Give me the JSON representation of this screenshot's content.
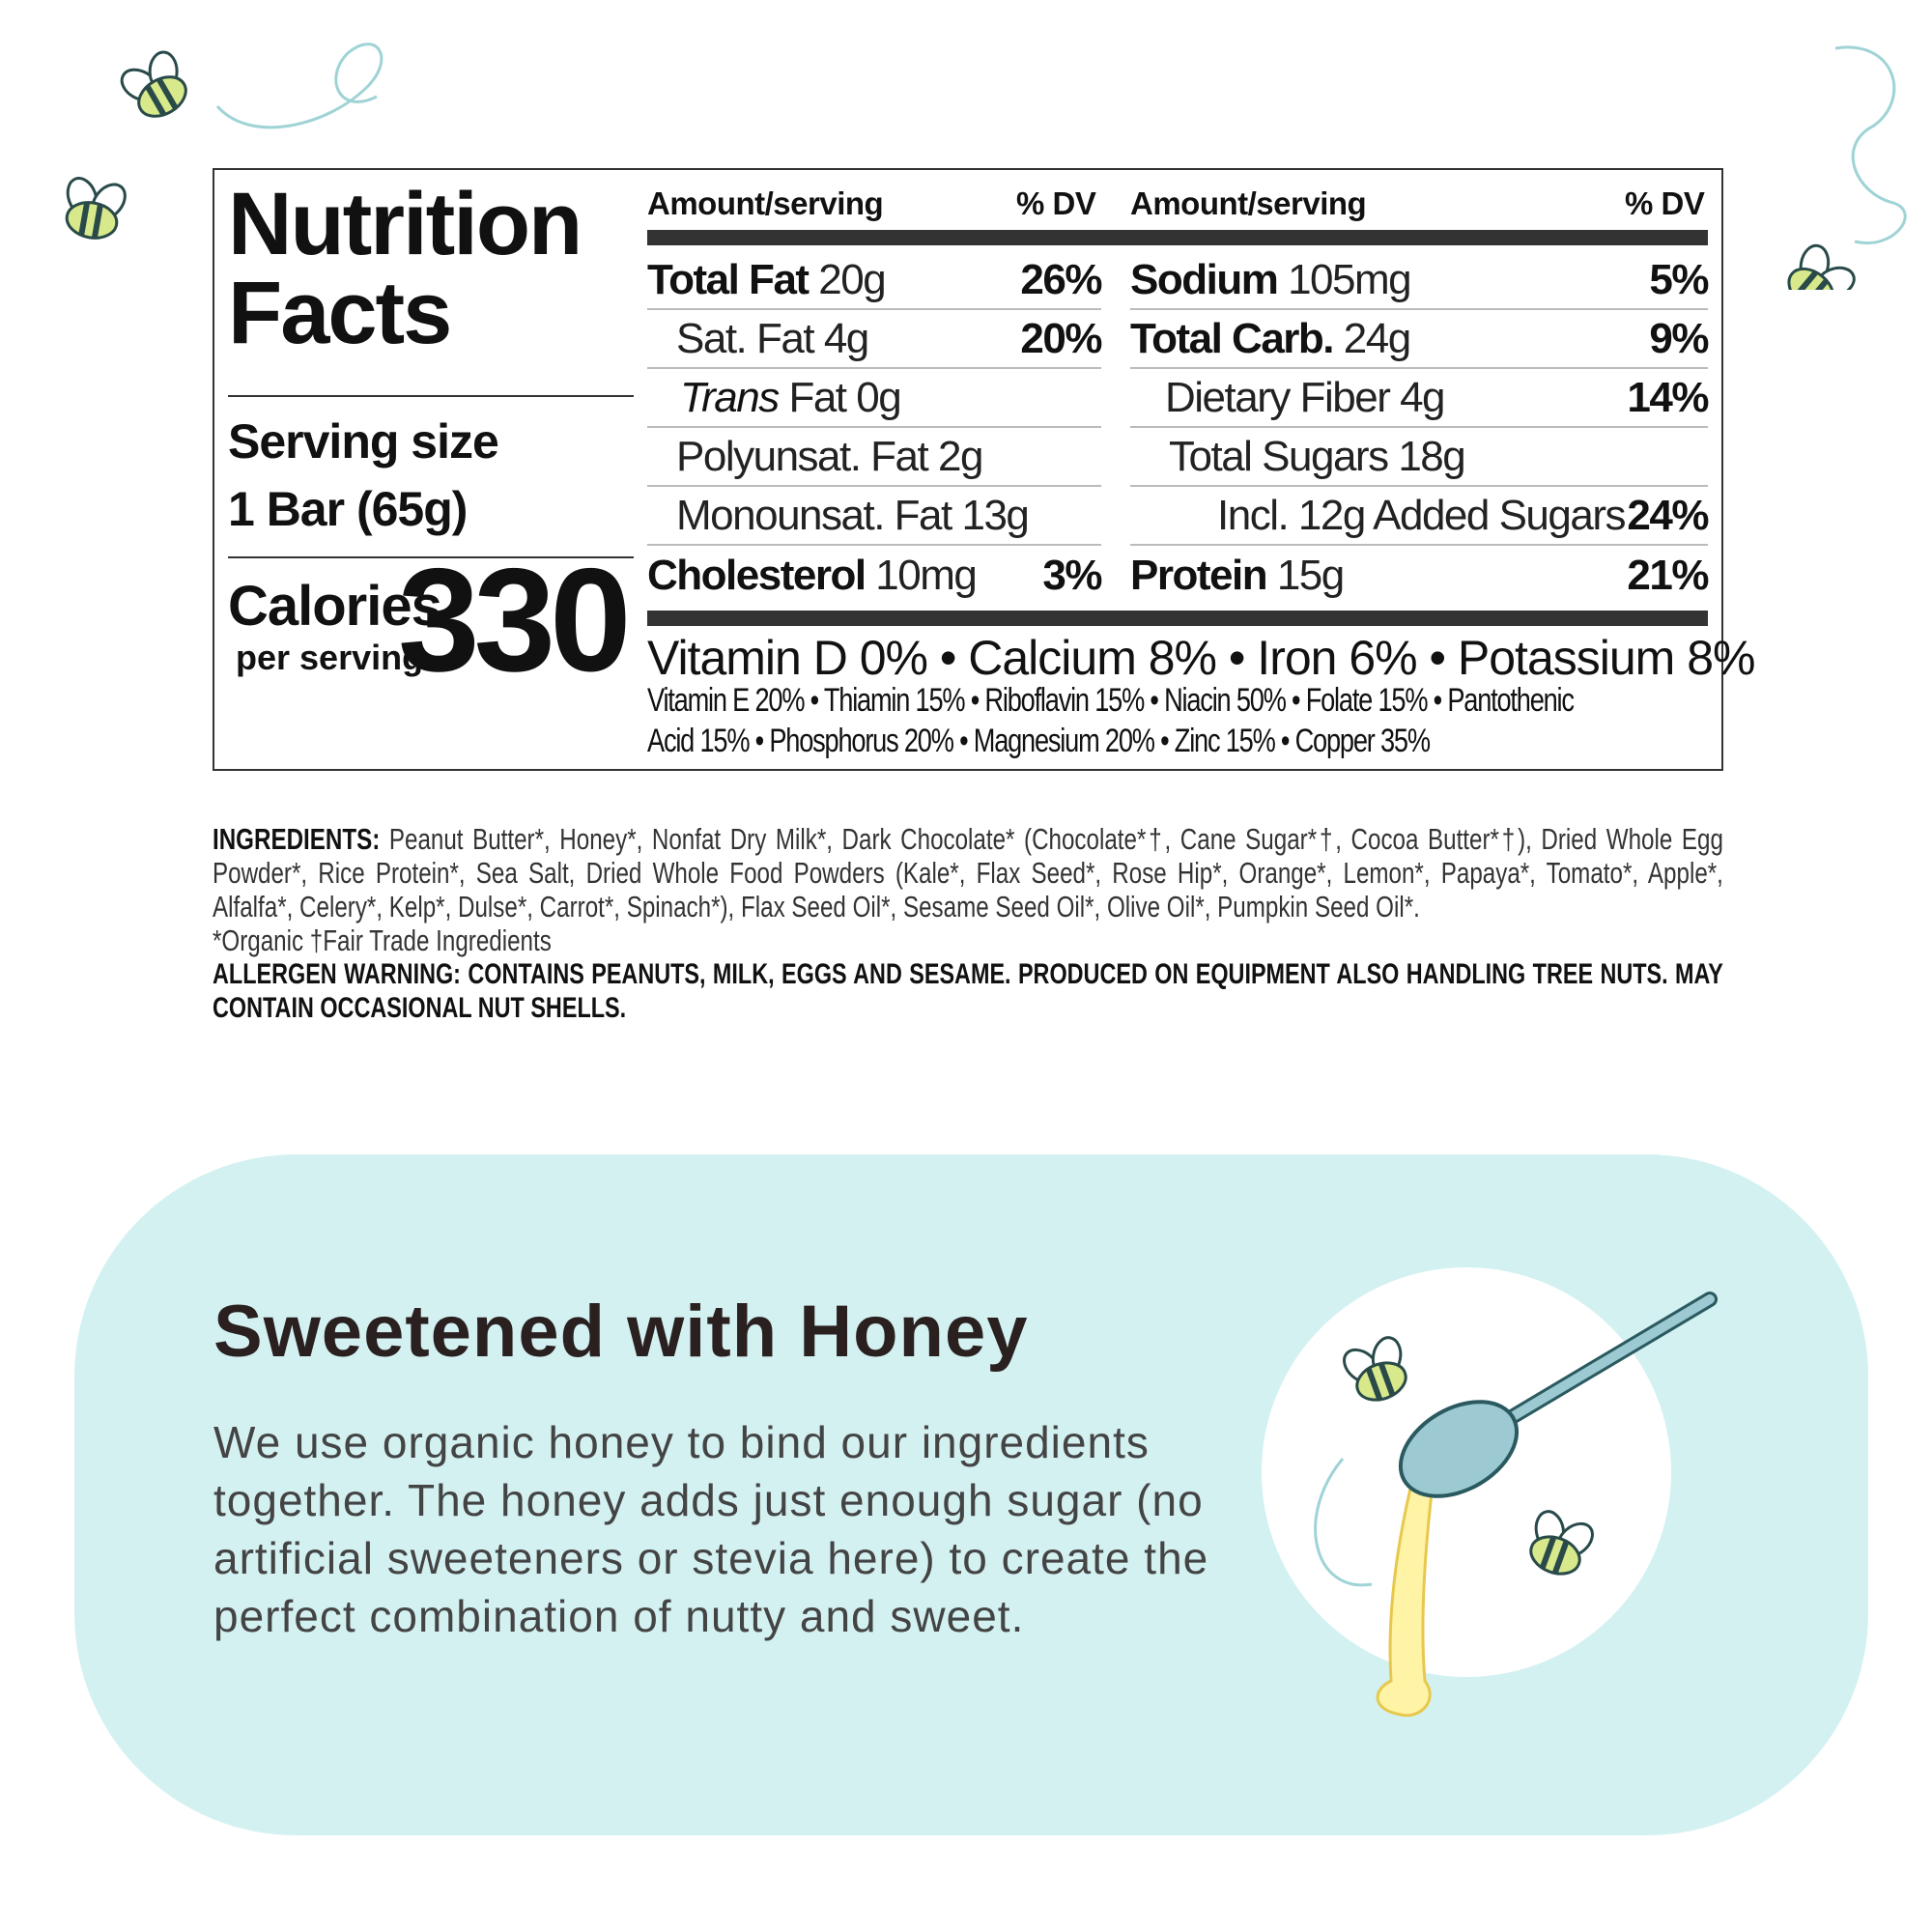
{
  "label": {
    "title_line1": "Nutrition",
    "title_line2": "Facts",
    "serving_size_label": "Serving size",
    "serving_size_value": "1 Bar (65g)",
    "calories_label": "Calories",
    "per_serving": "per serving",
    "calories": "330",
    "header_amount": "Amount/serving",
    "header_dv": "% DV",
    "left_rows": [
      {
        "name": "Total Fat",
        "amount": "20g",
        "dv": "26%"
      },
      {
        "name": "Sat. Fat",
        "amount": "4g",
        "dv": "20%"
      },
      {
        "name": "Trans",
        "amount": "Fat 0g",
        "dv": ""
      },
      {
        "name": "Polyunsat. Fat",
        "amount": "2g",
        "dv": ""
      },
      {
        "name": "Monounsat. Fat",
        "amount": "13g",
        "dv": ""
      },
      {
        "name": "Cholesterol",
        "amount": "10mg",
        "dv": "3%"
      }
    ],
    "right_rows": [
      {
        "name": "Sodium",
        "amount": "105mg",
        "dv": "5%"
      },
      {
        "name": "Total Carb.",
        "amount": "24g",
        "dv": "9%"
      },
      {
        "name": "Dietary Fiber",
        "amount": "4g",
        "dv": "14%"
      },
      {
        "name": "Total Sugars",
        "amount": "18g",
        "dv": ""
      },
      {
        "name": "Incl. 12g Added Sugars",
        "amount": "",
        "dv": "24%"
      },
      {
        "name": "Protein",
        "amount": "15g",
        "dv": "21%"
      }
    ],
    "vitamins_main": "Vitamin D 0% • Calcium 8% • Iron 6% • Potassium 8%",
    "vitamins_line2": "Vitamin E 20% • Thiamin 15% • Riboflavin 15% • Niacin 50% • Folate 15% • Pantothenic",
    "vitamins_line3": "Acid 15% • Phosphorus 20% • Magnesium 20% • Zinc 15% • Copper 35%"
  },
  "ingredients": {
    "label": "INGREDIENTS:",
    "text": "Peanut Butter*, Honey*, Nonfat Dry Milk*, Dark Chocolate* (Chocolate*†, Cane Sugar*†, Cocoa Butter*†), Dried Whole Egg Powder*, Rice Protein*, Sea Salt, Dried Whole Food Powders (Kale*, Flax Seed*, Rose Hip*, Orange*, Lemon*, Papaya*, Tomato*, Apple*, Alfalfa*, Celery*, Kelp*, Dulse*, Carrot*, Spinach*), Flax Seed Oil*, Sesame Seed Oil*, Olive Oil*, Pumpkin Seed Oil*.",
    "footnote": "*Organic †Fair Trade Ingredients",
    "allergen": "ALLERGEN WARNING: CONTAINS PEANUTS, MILK, EGGS AND SESAME.  PRODUCED ON EQUIPMENT ALSO HANDLING TREE NUTS.  MAY CONTAIN OCCASIONAL NUT SHELLS."
  },
  "panel": {
    "heading": "Sweetened with Honey",
    "body": "We use organic honey to bind our ingredients together. The honey adds just enough sugar (no artificial sweeteners or stevia here) to create the perfect combination of nutty and sweet.",
    "background_color": "#d4f1f2"
  },
  "icons": [
    "bee-icon",
    "honey-dipper-icon"
  ]
}
